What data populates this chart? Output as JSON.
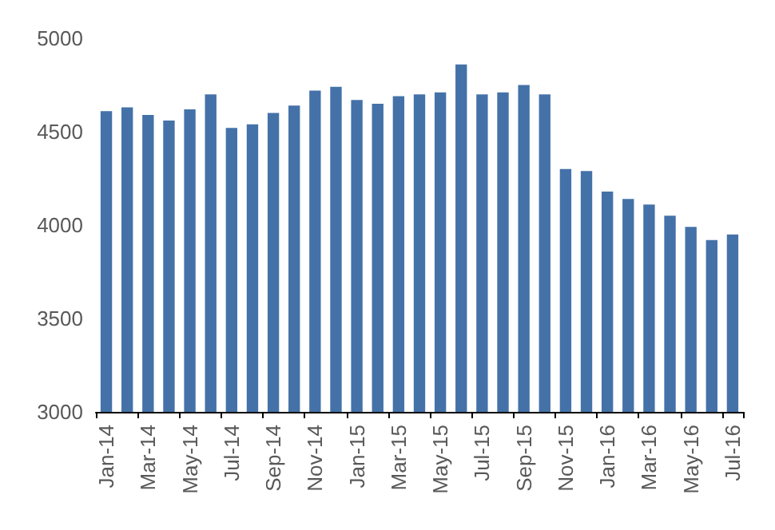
{
  "chart_data": {
    "type": "bar",
    "categories": [
      "Jan-14",
      null,
      "Mar-14",
      null,
      "May-14",
      null,
      "Jul-14",
      null,
      "Sep-14",
      null,
      "Nov-14",
      null,
      "Jan-15",
      null,
      "Mar-15",
      null,
      "May-15",
      null,
      "Jul-15",
      null,
      "Sep-15",
      null,
      "Nov-15",
      null,
      "Jan-16",
      null,
      "Mar-16",
      null,
      "May-16",
      null,
      "Jul-16"
    ],
    "values": [
      4610,
      4630,
      4590,
      4560,
      4620,
      4700,
      4520,
      4540,
      4600,
      4640,
      4720,
      4740,
      4670,
      4650,
      4690,
      4700,
      4710,
      4860,
      4700,
      4710,
      4750,
      4700,
      4300,
      4290,
      4180,
      4140,
      4110,
      4050,
      3990,
      3920,
      3950
    ],
    "color": "#4472a8",
    "ylim": [
      3000,
      5000
    ],
    "yticks": [
      3000,
      3500,
      4000,
      4500,
      5000
    ],
    "grid": false
  }
}
